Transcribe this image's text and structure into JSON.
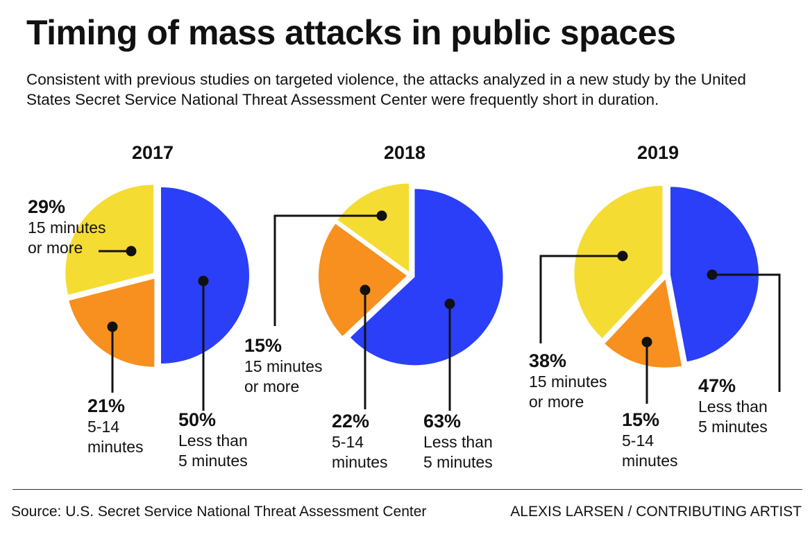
{
  "header": {
    "title": "Timing of mass attacks in public spaces",
    "subtitle": "Consistent with previous studies on targeted violence, the attacks analyzed in a new study by the United States Secret Service National Threat Assessment Center were frequently short in duration."
  },
  "colors": {
    "less_than_5": "#2a3ff7",
    "five_to_14": "#f7901e",
    "fifteen_plus": "#f5dc32",
    "leader": "#111111"
  },
  "chart_data": [
    {
      "type": "pie",
      "title": "2017",
      "slices": [
        {
          "name": "Less than 5 minutes",
          "value": 50,
          "pct": "50%",
          "line1": "Less than",
          "line2": "5 minutes"
        },
        {
          "name": "5-14 minutes",
          "value": 21,
          "pct": "21%",
          "line1": "5-14",
          "line2": "minutes"
        },
        {
          "name": "15 minutes or more",
          "value": 29,
          "pct": "29%",
          "line1": "15 minutes",
          "line2": "or more"
        }
      ]
    },
    {
      "type": "pie",
      "title": "2018",
      "slices": [
        {
          "name": "Less than 5 minutes",
          "value": 63,
          "pct": "63%",
          "line1": "Less than",
          "line2": "5 minutes"
        },
        {
          "name": "5-14 minutes",
          "value": 22,
          "pct": "22%",
          "line1": "5-14",
          "line2": "minutes"
        },
        {
          "name": "15 minutes or more",
          "value": 15,
          "pct": "15%",
          "line1": "15 minutes",
          "line2": "or more"
        }
      ]
    },
    {
      "type": "pie",
      "title": "2019",
      "slices": [
        {
          "name": "Less than 5 minutes",
          "value": 47,
          "pct": "47%",
          "line1": "Less than",
          "line2": "5 minutes"
        },
        {
          "name": "5-14 minutes",
          "value": 15,
          "pct": "15%",
          "line1": "5-14",
          "line2": "minutes"
        },
        {
          "name": "15 minutes or more",
          "value": 38,
          "pct": "38%",
          "line1": "15 minutes",
          "line2": "or more"
        }
      ]
    }
  ],
  "footer": {
    "source": "Source: U.S. Secret Service National Threat Assessment Center",
    "credit": "ALEXIS LARSEN / CONTRIBUTING ARTIST"
  }
}
